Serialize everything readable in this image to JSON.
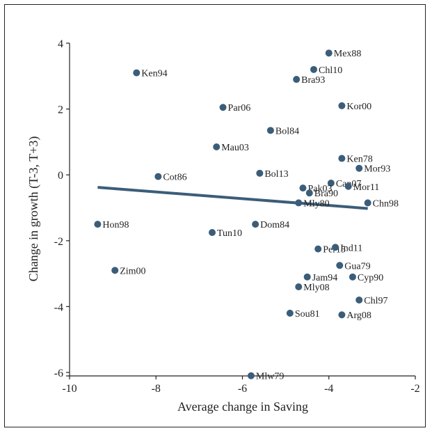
{
  "chart_data": {
    "type": "scatter",
    "title": "",
    "xlabel": "Average change in Saving",
    "ylabel": "Change in growth (T-3, T+3)",
    "xlim": [
      -10,
      -2
    ],
    "ylim": [
      -6,
      4
    ],
    "xticks": [
      -10,
      -8,
      -6,
      -4,
      -2
    ],
    "yticks": [
      -6,
      -4,
      -2,
      0,
      2,
      4
    ],
    "grid": false,
    "colors": {
      "point": "#3b5d79",
      "fit_line": "#3b5d79",
      "frame": "#222222"
    },
    "points": [
      {
        "label": "Mex88",
        "x": -4.0,
        "y": 3.7
      },
      {
        "label": "Chl10",
        "x": -4.35,
        "y": 3.2
      },
      {
        "label": "Ken94",
        "x": -8.45,
        "y": 3.1
      },
      {
        "label": "Bra93",
        "x": -4.75,
        "y": 2.9
      },
      {
        "label": "Par06",
        "x": -6.45,
        "y": 2.05
      },
      {
        "label": "Kor00",
        "x": -3.7,
        "y": 2.1
      },
      {
        "label": "Bol84",
        "x": -5.35,
        "y": 1.35
      },
      {
        "label": "Mau03",
        "x": -6.6,
        "y": 0.85
      },
      {
        "label": "Ken78",
        "x": -3.7,
        "y": 0.5
      },
      {
        "label": "Mor93",
        "x": -3.3,
        "y": 0.2
      },
      {
        "label": "Bol13",
        "x": -5.6,
        "y": 0.05
      },
      {
        "label": "Cot86",
        "x": -7.95,
        "y": -0.05
      },
      {
        "label": "Can07",
        "x": -3.95,
        "y": -0.25
      },
      {
        "label": "Mor11",
        "x": -3.55,
        "y": -0.35
      },
      {
        "label": "Pak03",
        "x": -4.6,
        "y": -0.4
      },
      {
        "label": "Bra90",
        "x": -4.45,
        "y": -0.55
      },
      {
        "label": "Mly80",
        "x": -4.7,
        "y": -0.85
      },
      {
        "label": "Chn98",
        "x": -3.1,
        "y": -0.85
      },
      {
        "label": "Hon98",
        "x": -9.35,
        "y": -1.5
      },
      {
        "label": "Dom84",
        "x": -5.7,
        "y": -1.5
      },
      {
        "label": "Tun10",
        "x": -6.7,
        "y": -1.75
      },
      {
        "label": "Per15",
        "x": -4.25,
        "y": -2.25
      },
      {
        "label": "Ind11",
        "x": -3.85,
        "y": -2.2
      },
      {
        "label": "Gua79",
        "x": -3.75,
        "y": -2.75
      },
      {
        "label": "Zim00",
        "x": -8.95,
        "y": -2.9
      },
      {
        "label": "Jam94",
        "x": -4.5,
        "y": -3.1
      },
      {
        "label": "Cyp90",
        "x": -3.45,
        "y": -3.1
      },
      {
        "label": "Mly08",
        "x": -4.7,
        "y": -3.4
      },
      {
        "label": "Chl97",
        "x": -3.3,
        "y": -3.8
      },
      {
        "label": "Sou81",
        "x": -4.9,
        "y": -4.2
      },
      {
        "label": "Arg08",
        "x": -3.7,
        "y": -4.25
      },
      {
        "label": "Mlw79",
        "x": -5.8,
        "y": -6.1
      }
    ],
    "fit_line": {
      "x": [
        -9.35,
        -3.1
      ],
      "y": [
        -0.38,
        -1.02
      ]
    }
  }
}
